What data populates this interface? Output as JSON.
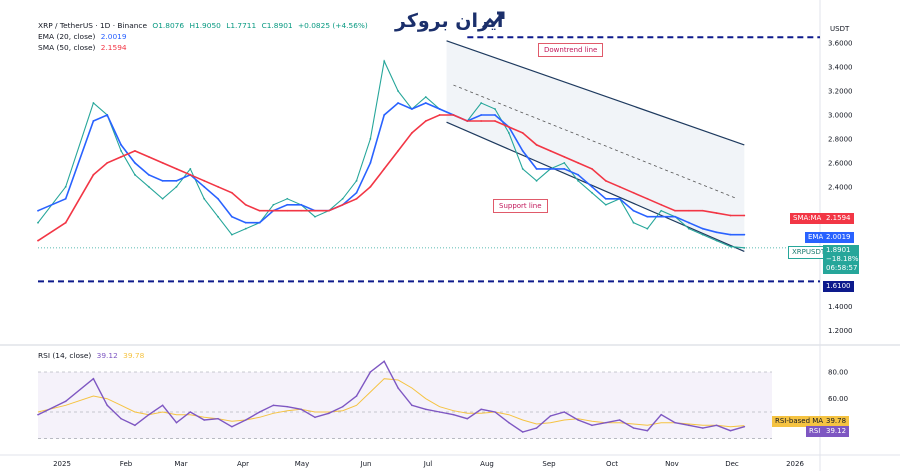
{
  "header": {
    "symbol": "XRP / TetherUS · 1D · Binance",
    "ohlc": {
      "o": "O1.8076",
      "h": "H1.9050",
      "l": "L1.7711",
      "c": "C1.8901",
      "chg": "+0.0825 (+4.56%)"
    },
    "ema": {
      "label": "EMA (20, close)",
      "value": "2.0019"
    },
    "sma": {
      "label": "SMA (50, close)",
      "value": "2.1594"
    },
    "rsi": {
      "label": "RSI (14, close)",
      "value": "39.12",
      "ma": "39.78"
    }
  },
  "logo": {
    "text": "ایران بروکر"
  },
  "currency": "USDT",
  "annotations": {
    "downtrend": "Downtrend line",
    "support": "Support line"
  },
  "tags": {
    "sma_label": "SMA:MA",
    "sma_value": "2.1594",
    "ema_label": "EMA",
    "ema_value": "2.0019",
    "price_label": "XRPUSDT",
    "price_value": "1.8901",
    "price_pct": "−18.18%",
    "countdown": "06:58:57",
    "level_value": "1.6100",
    "rsi_ma_label": "RSI-based MA",
    "rsi_ma_value": "39.78",
    "rsi_label": "RSI",
    "rsi_value": "39.12"
  },
  "colors": {
    "ema": "#2962ff",
    "sma": "#f23645",
    "price": "#26a69a",
    "rsi": "#7e57c2",
    "rsi_ma": "#f5c342",
    "level": "#0d1a8c",
    "channel": "#1e3a5f"
  },
  "chart_data": [
    {
      "type": "line",
      "title": "XRP / TetherUS · 1D · Binance",
      "ylabel": "USDT",
      "y_ticks": [
        1.2,
        1.4,
        1.6,
        1.8,
        2.0,
        2.2,
        2.4,
        2.6,
        2.8,
        3.0,
        3.2,
        3.4,
        3.6
      ],
      "y_tick_labels": [
        "1.2000",
        "1.4000",
        "",
        "",
        "",
        "",
        "2.4000",
        "2.6000",
        "2.8000",
        "3.0000",
        "3.2000",
        "3.4000",
        "3.6000"
      ],
      "ylim": [
        1.12,
        3.66
      ],
      "x_tick_labels": [
        "2025",
        "Feb",
        "Mar",
        "Apr",
        "May",
        "Jun",
        "Jul",
        "Aug",
        "Sep",
        "Oct",
        "Nov",
        "Dec",
        "2026"
      ],
      "xlim": [
        0,
        53
      ],
      "horizontal_levels": [
        3.65,
        1.61
      ],
      "series": [
        {
          "name": "XRPUSDT",
          "x": [
            0,
            2,
            4,
            5,
            6,
            7,
            8,
            9,
            10,
            11,
            12,
            13,
            14,
            15,
            16,
            17,
            18,
            19,
            20,
            21,
            22,
            23,
            24,
            25,
            26,
            27,
            28,
            29,
            30,
            31,
            32,
            33,
            34,
            35,
            36,
            37,
            38,
            39,
            40,
            41,
            42,
            43,
            44,
            45,
            46,
            47,
            48,
            49,
            50,
            51
          ],
          "values": [
            2.1,
            2.4,
            3.1,
            3.0,
            2.7,
            2.5,
            2.4,
            2.3,
            2.4,
            2.55,
            2.3,
            2.15,
            2.0,
            2.05,
            2.1,
            2.25,
            2.3,
            2.25,
            2.15,
            2.2,
            2.3,
            2.45,
            2.8,
            3.45,
            3.2,
            3.05,
            3.15,
            3.05,
            3.0,
            2.95,
            3.1,
            3.05,
            2.85,
            2.55,
            2.45,
            2.55,
            2.6,
            2.45,
            2.35,
            2.25,
            2.3,
            2.1,
            2.05,
            2.2,
            2.15,
            2.05,
            2.0,
            1.95,
            1.9,
            1.89
          ]
        },
        {
          "name": "EMA",
          "x": [
            0,
            2,
            4,
            5,
            6,
            7,
            8,
            9,
            10,
            11,
            12,
            13,
            14,
            15,
            16,
            17,
            18,
            19,
            20,
            21,
            22,
            23,
            24,
            25,
            26,
            27,
            28,
            29,
            30,
            31,
            32,
            33,
            34,
            35,
            36,
            37,
            38,
            39,
            40,
            41,
            42,
            43,
            44,
            45,
            46,
            47,
            48,
            49,
            50,
            51
          ],
          "values": [
            2.2,
            2.3,
            2.95,
            3.0,
            2.75,
            2.6,
            2.5,
            2.45,
            2.45,
            2.5,
            2.4,
            2.3,
            2.15,
            2.1,
            2.1,
            2.2,
            2.25,
            2.25,
            2.2,
            2.2,
            2.25,
            2.35,
            2.6,
            3.0,
            3.1,
            3.05,
            3.1,
            3.05,
            3.0,
            2.95,
            3.0,
            3.0,
            2.9,
            2.7,
            2.55,
            2.55,
            2.55,
            2.5,
            2.4,
            2.3,
            2.3,
            2.2,
            2.15,
            2.15,
            2.15,
            2.1,
            2.05,
            2.02,
            2.0,
            2.0
          ]
        },
        {
          "name": "SMA",
          "x": [
            0,
            2,
            4,
            5,
            6,
            7,
            8,
            9,
            10,
            11,
            12,
            13,
            14,
            15,
            16,
            17,
            18,
            19,
            20,
            21,
            22,
            23,
            24,
            25,
            26,
            27,
            28,
            29,
            30,
            31,
            32,
            33,
            34,
            35,
            36,
            37,
            38,
            39,
            40,
            41,
            42,
            43,
            44,
            45,
            46,
            47,
            48,
            49,
            50,
            51
          ],
          "values": [
            1.95,
            2.1,
            2.5,
            2.6,
            2.65,
            2.7,
            2.65,
            2.6,
            2.55,
            2.5,
            2.45,
            2.4,
            2.35,
            2.25,
            2.2,
            2.2,
            2.2,
            2.2,
            2.2,
            2.2,
            2.25,
            2.3,
            2.4,
            2.55,
            2.7,
            2.85,
            2.95,
            3.0,
            3.0,
            2.95,
            2.95,
            2.95,
            2.9,
            2.85,
            2.75,
            2.7,
            2.65,
            2.6,
            2.55,
            2.45,
            2.4,
            2.35,
            2.3,
            2.25,
            2.2,
            2.2,
            2.2,
            2.18,
            2.16,
            2.16
          ]
        }
      ]
    },
    {
      "type": "line",
      "title": "RSI (14, close)",
      "y_ticks": [
        40,
        60,
        80
      ],
      "ylim": [
        20,
        95
      ],
      "x_tick_labels": [
        "2025",
        "Feb",
        "Mar",
        "Apr",
        "May",
        "Jun",
        "Jul",
        "Aug",
        "Sep",
        "Oct",
        "Nov",
        "Dec",
        "2026"
      ],
      "series": [
        {
          "name": "RSI",
          "x": [
            0,
            2,
            4,
            5,
            6,
            7,
            8,
            9,
            10,
            11,
            12,
            13,
            14,
            15,
            16,
            17,
            18,
            19,
            20,
            21,
            22,
            23,
            24,
            25,
            26,
            27,
            28,
            29,
            30,
            31,
            32,
            33,
            34,
            35,
            36,
            37,
            38,
            39,
            40,
            41,
            42,
            43,
            44,
            45,
            46,
            47,
            48,
            49,
            50,
            51
          ],
          "values": [
            48,
            58,
            75,
            55,
            45,
            40,
            48,
            55,
            42,
            50,
            44,
            45,
            39,
            44,
            50,
            55,
            54,
            52,
            46,
            49,
            54,
            62,
            80,
            88,
            68,
            55,
            52,
            50,
            48,
            45,
            52,
            50,
            42,
            35,
            38,
            47,
            50,
            44,
            40,
            42,
            44,
            38,
            36,
            48,
            42,
            40,
            38,
            40,
            36,
            39
          ]
        },
        {
          "name": "RSI-based MA",
          "x": [
            0,
            2,
            4,
            5,
            6,
            7,
            8,
            9,
            10,
            11,
            12,
            13,
            14,
            15,
            16,
            17,
            18,
            19,
            20,
            21,
            22,
            23,
            24,
            25,
            26,
            27,
            28,
            29,
            30,
            31,
            32,
            33,
            34,
            35,
            36,
            37,
            38,
            39,
            40,
            41,
            42,
            43,
            44,
            45,
            46,
            47,
            48,
            49,
            50,
            51
          ],
          "values": [
            50,
            55,
            62,
            60,
            55,
            50,
            48,
            50,
            48,
            48,
            46,
            45,
            43,
            44,
            46,
            49,
            51,
            52,
            50,
            50,
            51,
            55,
            65,
            75,
            74,
            68,
            60,
            54,
            51,
            49,
            49,
            50,
            48,
            44,
            41,
            42,
            44,
            45,
            43,
            42,
            42,
            41,
            40,
            42,
            42,
            41,
            40,
            40,
            39,
            39.78
          ]
        }
      ]
    }
  ]
}
